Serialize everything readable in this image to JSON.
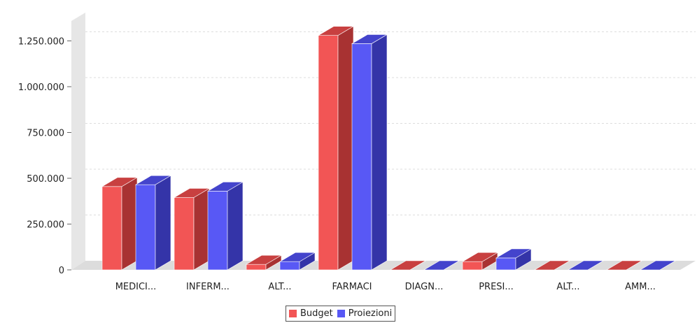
{
  "chart_data": {
    "type": "bar",
    "categories": [
      "MEDICI...",
      "INFERM...",
      "ALT...",
      "FARMACI",
      "DIAGN...",
      "PRESI...",
      "ALT...",
      "AMM..."
    ],
    "series": [
      {
        "name": "Budget",
        "values": [
          455000,
          395000,
          30000,
          1280000,
          0,
          45000,
          0,
          0
        ]
      },
      {
        "name": "Proiezioni",
        "values": [
          465000,
          430000,
          45000,
          1235000,
          0,
          65000,
          0,
          0
        ]
      }
    ],
    "yticks": [
      {
        "value": 0,
        "label": "0"
      },
      {
        "value": 250000,
        "label": "250.000"
      },
      {
        "value": 500000,
        "label": "500.000"
      },
      {
        "value": 750000,
        "label": "750.000"
      },
      {
        "value": 1000000,
        "label": "1.000.000"
      },
      {
        "value": 1250000,
        "label": "1.250.000"
      }
    ],
    "ylim": [
      0,
      1350000
    ],
    "grid": true,
    "legend_position": "bottom",
    "colors": {
      "Budget": {
        "front": "#f25555",
        "side": "#a83232",
        "top": "#c84040"
      },
      "Proiezioni": {
        "front": "#5858f5",
        "side": "#3434a8",
        "top": "#4444cc"
      }
    }
  },
  "legend": {
    "items": [
      {
        "label": "Budget",
        "color": "#f25555"
      },
      {
        "label": "Proiezioni",
        "color": "#5858f5"
      }
    ]
  }
}
